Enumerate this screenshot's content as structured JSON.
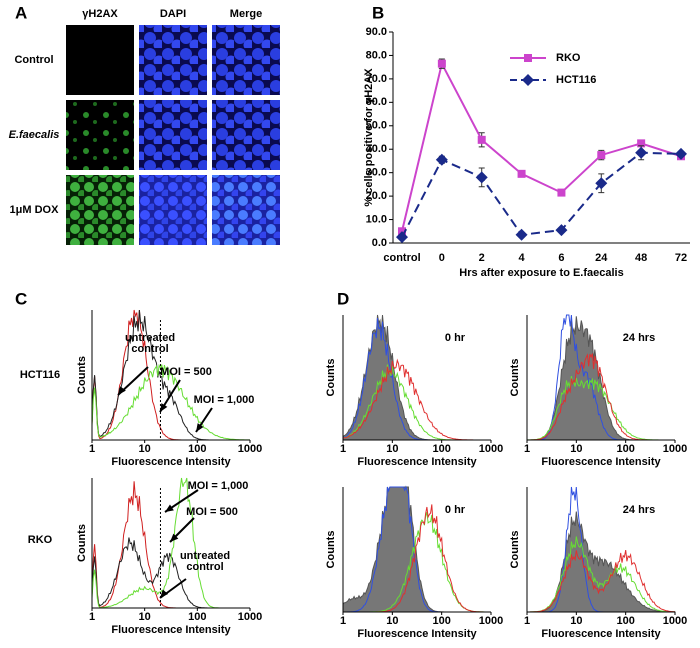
{
  "panel_a": {
    "label": "A",
    "columns": [
      "γH2AX",
      "DAPI",
      "Merge"
    ],
    "rows": [
      "Control",
      "E.faecalis",
      "1μM DOX"
    ]
  },
  "chart_data": {
    "type": "line",
    "panel_label": "B",
    "ylabel": "% cells positive for γH2AX",
    "xlabel": "Hrs after exposure to E.faecalis",
    "categories": [
      "control",
      "0",
      "2",
      "4",
      "6",
      "24",
      "48",
      "72"
    ],
    "series": [
      {
        "name": "RKO",
        "color": "#cc44cc",
        "marker": "square",
        "dash": false,
        "values": [
          5.0,
          76.5,
          44.0,
          29.5,
          21.5,
          37.5,
          42.5,
          37.0
        ],
        "errors": [
          1.0,
          2.0,
          3.0,
          1.0,
          0.5,
          2.0,
          1.0,
          1.0
        ]
      },
      {
        "name": "HCT116",
        "color": "#1a2a8a",
        "marker": "diamond",
        "dash": true,
        "values": [
          2.5,
          35.5,
          28.0,
          3.5,
          5.5,
          25.5,
          38.5,
          38.0
        ],
        "errors": [
          1.0,
          1.5,
          4.0,
          0.5,
          0.5,
          4.0,
          3.0,
          1.0
        ]
      }
    ],
    "ylim": [
      0,
      90
    ],
    "yticks": [
      {
        "value": 0,
        "label": "0.0"
      },
      {
        "value": 10,
        "label": "10.0"
      },
      {
        "value": 20,
        "label": "20.0"
      },
      {
        "value": 30,
        "label": "30.0"
      },
      {
        "value": 40,
        "label": "40.0"
      },
      {
        "value": 50,
        "label": "50.0"
      },
      {
        "value": 60,
        "label": "60.0"
      },
      {
        "value": 70,
        "label": "70.0"
      },
      {
        "value": 80,
        "label": "80.0"
      },
      {
        "value": 90,
        "label": "90.0"
      }
    ],
    "legend": "upper right"
  },
  "panel_c": {
    "label": "C",
    "plots": [
      {
        "row_label": "HCT116",
        "ylabel": "Counts",
        "xlabel": "Fluorescence Intensity",
        "xticks": [
          "1",
          "10",
          "100",
          "1000"
        ],
        "annotations": [
          [
            "untreated",
            "control"
          ],
          [
            "MOI = 500"
          ],
          [
            "MOI = 1,000"
          ]
        ]
      },
      {
        "row_label": "RKO",
        "ylabel": "Counts",
        "xlabel": "Fluorescence Intensity",
        "xticks": [
          "1",
          "10",
          "100",
          "1000"
        ],
        "annotations": [
          [
            "MOI = 1,000"
          ],
          [
            "MOI = 500"
          ],
          [
            "untreated",
            "control"
          ]
        ]
      }
    ]
  },
  "panel_d": {
    "label": "D",
    "plots": [
      {
        "time": "0 hr",
        "ylabel": "Counts",
        "xlabel": "Fluorescence Intensity",
        "xticks": [
          "1",
          "10",
          "100",
          "1000"
        ]
      },
      {
        "time": "24 hrs",
        "ylabel": "Counts",
        "xlabel": "Fluorescence Intensity",
        "xticks": [
          "1",
          "10",
          "100",
          "1000"
        ]
      },
      {
        "time": "0 hr",
        "ylabel": "Counts",
        "xlabel": "Fluorescence Intensity",
        "xticks": [
          "1",
          "10",
          "100",
          "1000"
        ]
      },
      {
        "time": "24 hrs",
        "ylabel": "Counts",
        "xlabel": "Fluorescence Intensity",
        "xticks": [
          "1",
          "10",
          "100",
          "1000"
        ]
      }
    ]
  }
}
